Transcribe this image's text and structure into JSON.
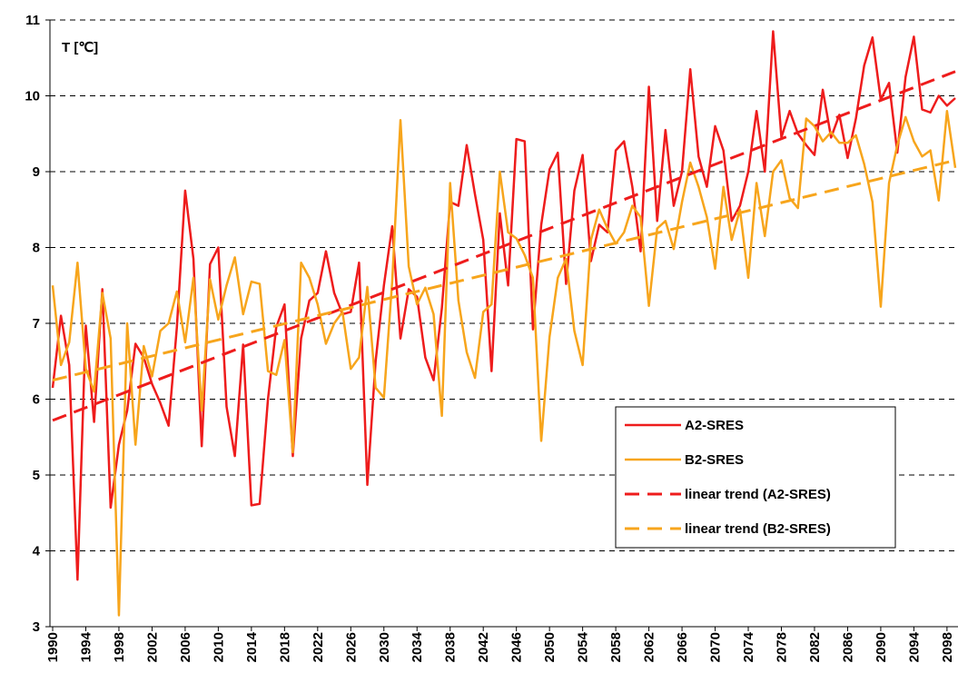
{
  "chart_data": {
    "type": "line",
    "y_label": "T [℃]",
    "categories": [
      "1990",
      null,
      null,
      null,
      "1994",
      null,
      null,
      null,
      "1998",
      null,
      null,
      null,
      "2002",
      null,
      null,
      null,
      "2006",
      null,
      null,
      null,
      "2010",
      null,
      null,
      null,
      "2014",
      null,
      null,
      null,
      "2018",
      null,
      null,
      null,
      "2022",
      null,
      null,
      null,
      "2026",
      null,
      null,
      null,
      "2030",
      null,
      null,
      null,
      "2034",
      null,
      null,
      null,
      "2038",
      null,
      null,
      null,
      "2042",
      null,
      null,
      null,
      "2046",
      null,
      null,
      null,
      "2050",
      null,
      null,
      null,
      "2054",
      null,
      null,
      null,
      "2058",
      null,
      null,
      null,
      "2062",
      null,
      null,
      null,
      "2066",
      null,
      null,
      null,
      "2070",
      null,
      null,
      null,
      "2074",
      null,
      null,
      null,
      "2078",
      null,
      null,
      null,
      "2082",
      null,
      null,
      null,
      "2086",
      null,
      null,
      null,
      "2090",
      null,
      null,
      null,
      "2094",
      null,
      null,
      null,
      "2098",
      null
    ],
    "series": [
      {
        "name": "A2-SRES",
        "color": "#ee1c1c",
        "values": [
          6.15,
          7.1,
          6.45,
          3.62,
          6.97,
          5.7,
          7.45,
          4.57,
          5.4,
          5.85,
          6.73,
          6.55,
          6.2,
          5.95,
          5.65,
          6.95,
          8.75,
          7.85,
          5.38,
          7.78,
          8.0,
          5.9,
          5.25,
          6.72,
          4.6,
          4.62,
          6.0,
          6.95,
          7.25,
          5.25,
          6.8,
          7.3,
          7.4,
          7.95,
          7.4,
          7.12,
          7.15,
          7.8,
          4.87,
          6.5,
          7.5,
          8.28,
          6.8,
          7.45,
          7.35,
          6.55,
          6.25,
          7.2,
          8.6,
          8.55,
          9.35,
          8.7,
          8.1,
          6.37,
          8.45,
          7.5,
          9.43,
          9.4,
          6.92,
          8.3,
          9.03,
          9.25,
          7.52,
          8.75,
          9.22,
          7.82,
          8.3,
          8.2,
          9.28,
          9.4,
          8.8,
          7.95,
          10.12,
          8.35,
          9.55,
          8.55,
          9.0,
          10.35,
          9.2,
          8.8,
          9.6,
          9.28,
          8.35,
          8.55,
          9.0,
          9.8,
          9.0,
          10.85,
          9.45,
          9.8,
          9.5,
          9.35,
          9.22,
          10.08,
          9.45,
          9.75,
          9.18,
          9.7,
          10.4,
          10.77,
          9.95,
          10.17,
          9.25,
          10.25,
          10.78,
          9.82,
          9.78,
          10.0,
          9.87,
          9.97
        ]
      },
      {
        "name": "B2-SRES",
        "color": "#f7a51c",
        "values": [
          7.5,
          6.45,
          6.75,
          7.8,
          6.4,
          6.1,
          7.4,
          6.8,
          3.15,
          7.0,
          5.4,
          6.7,
          6.3,
          6.9,
          7.0,
          7.42,
          6.75,
          7.6,
          5.85,
          7.58,
          7.05,
          7.5,
          7.87,
          7.12,
          7.55,
          7.52,
          6.37,
          6.32,
          6.78,
          5.3,
          7.8,
          7.6,
          7.25,
          6.73,
          7.0,
          7.15,
          6.4,
          6.55,
          7.48,
          6.15,
          6.02,
          7.55,
          9.68,
          7.75,
          7.25,
          7.47,
          7.12,
          5.78,
          8.85,
          7.3,
          6.62,
          6.28,
          7.15,
          7.25,
          9.0,
          8.2,
          8.12,
          7.9,
          7.6,
          5.45,
          6.82,
          7.6,
          7.85,
          6.9,
          6.45,
          8.1,
          8.5,
          8.25,
          8.05,
          8.2,
          8.55,
          8.4,
          7.23,
          8.25,
          8.35,
          7.98,
          8.6,
          9.12,
          8.8,
          8.4,
          7.72,
          8.8,
          8.1,
          8.5,
          7.6,
          8.85,
          8.15,
          9.0,
          9.15,
          8.65,
          8.52,
          9.7,
          9.6,
          9.4,
          9.52,
          9.38,
          9.38,
          9.48,
          9.1,
          8.6,
          7.22,
          8.85,
          9.35,
          9.72,
          9.4,
          9.2,
          9.28,
          8.62,
          9.8,
          9.05
        ]
      }
    ],
    "trends": [
      {
        "name": "linear trend (A2-SRES)",
        "color": "#ee1c1c",
        "values": [
          5.72,
          10.32
        ]
      },
      {
        "name": "linear trend (B2-SRES)",
        "color": "#f7a51c",
        "values": [
          6.25,
          9.15
        ]
      }
    ],
    "ylim": [
      3,
      11
    ],
    "yticks": [
      3,
      4,
      5,
      6,
      7,
      8,
      9,
      10,
      11
    ],
    "grid": true,
    "legend": "lower-right"
  }
}
